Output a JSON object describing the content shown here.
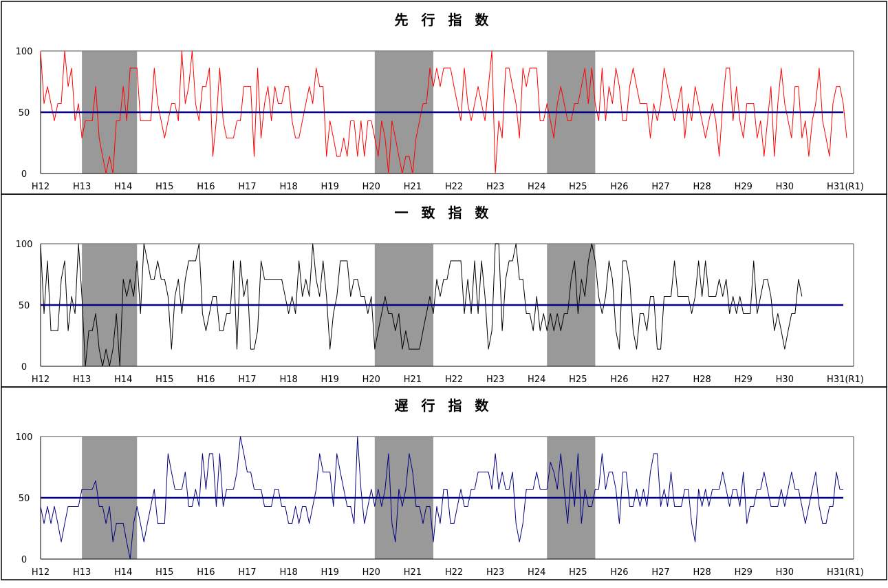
{
  "chart_data": [
    {
      "type": "line",
      "title": "先 行 指 数",
      "ylim": [
        0,
        100
      ],
      "yticks": [
        0,
        50,
        100
      ],
      "x_tick_labels": [
        "H12",
        "H13",
        "H14",
        "H15",
        "H16",
        "H17",
        "H18",
        "H19",
        "H20",
        "H21",
        "H22",
        "H23",
        "H24",
        "H25",
        "H26",
        "H27",
        "H28",
        "H29",
        "H30",
        "H31(R1)"
      ],
      "x_unit": "month index (0 = first month of H12)",
      "x_range": [
        0,
        236
      ],
      "recession_periods_months": [
        [
          12,
          28
        ],
        [
          97,
          114
        ],
        [
          147,
          161
        ]
      ],
      "reference_line": 50,
      "series_color": "#ff0000",
      "reference_color": "#000080",
      "values": [
        100,
        57,
        71,
        57,
        43,
        57,
        57,
        100,
        71,
        86,
        43,
        57,
        29,
        43,
        43,
        43,
        71,
        29,
        14,
        0,
        14,
        0,
        43,
        43,
        71,
        43,
        86,
        86,
        86,
        43,
        43,
        43,
        43,
        86,
        57,
        43,
        29,
        43,
        57,
        57,
        43,
        100,
        57,
        71,
        100,
        57,
        43,
        71,
        71,
        86,
        14,
        43,
        86,
        43,
        29,
        29,
        29,
        43,
        43,
        71,
        71,
        71,
        14,
        86,
        29,
        57,
        71,
        43,
        71,
        57,
        57,
        71,
        71,
        43,
        29,
        29,
        43,
        57,
        71,
        57,
        86,
        71,
        71,
        14,
        43,
        29,
        14,
        14,
        29,
        14,
        43,
        43,
        14,
        43,
        14,
        43,
        43,
        29,
        14,
        43,
        29,
        0,
        43,
        29,
        14,
        0,
        14,
        14,
        0,
        29,
        43,
        57,
        57,
        86,
        71,
        86,
        71,
        86,
        86,
        86,
        71,
        57,
        43,
        86,
        57,
        43,
        57,
        71,
        57,
        43,
        71,
        100,
        0,
        43,
        29,
        86,
        86,
        71,
        57,
        29,
        86,
        71,
        86,
        86,
        86,
        43,
        43,
        57,
        43,
        29,
        57,
        71,
        57,
        43,
        43,
        57,
        57,
        71,
        86,
        57,
        86,
        57,
        43,
        86,
        43,
        71,
        57,
        86,
        71,
        43,
        43,
        71,
        86,
        71,
        57,
        57,
        57,
        29,
        57,
        43,
        57,
        86,
        71,
        57,
        43,
        57,
        71,
        29,
        57,
        43,
        71,
        57,
        43,
        29,
        43,
        57,
        43,
        14,
        57,
        86,
        86,
        43,
        71,
        43,
        29,
        57,
        57,
        57,
        29,
        43,
        14,
        43,
        71,
        14,
        57,
        86,
        57,
        43,
        29,
        71,
        71,
        29,
        43,
        14,
        43,
        57,
        86,
        43,
        29,
        14,
        57,
        71,
        71,
        57,
        29
      ]
    },
    {
      "type": "line",
      "title": "一 致 指 数",
      "ylim": [
        0,
        100
      ],
      "yticks": [
        0,
        50,
        100
      ],
      "x_tick_labels": [
        "H12",
        "H13",
        "H14",
        "H15",
        "H16",
        "H17",
        "H18",
        "H19",
        "H20",
        "H21",
        "H22",
        "H23",
        "H24",
        "H25",
        "H26",
        "H27",
        "H28",
        "H29",
        "H30",
        "H31(R1)"
      ],
      "x_unit": "month index (0 = first month of H12)",
      "x_range": [
        0,
        236
      ],
      "recession_periods_months": [
        [
          12,
          28
        ],
        [
          97,
          114
        ],
        [
          147,
          161
        ]
      ],
      "reference_line": 50,
      "series_color": "#000000",
      "reference_color": "#000080",
      "values": [
        100,
        43,
        86,
        29,
        29,
        29,
        71,
        86,
        29,
        57,
        43,
        100,
        57,
        0,
        29,
        29,
        43,
        14,
        0,
        14,
        0,
        14,
        43,
        0,
        71,
        57,
        71,
        57,
        86,
        43,
        100,
        86,
        71,
        71,
        86,
        71,
        71,
        57,
        14,
        57,
        71,
        43,
        71,
        86,
        86,
        86,
        100,
        43,
        29,
        43,
        57,
        57,
        29,
        29,
        43,
        43,
        86,
        14,
        86,
        57,
        71,
        14,
        14,
        29,
        86,
        71,
        71,
        71,
        71,
        71,
        71,
        57,
        43,
        57,
        43,
        86,
        57,
        71,
        57,
        100,
        71,
        57,
        86,
        57,
        14,
        43,
        57,
        86,
        86,
        86,
        57,
        71,
        71,
        57,
        57,
        43,
        57,
        14,
        29,
        43,
        57,
        43,
        43,
        29,
        43,
        14,
        29,
        14,
        14,
        14,
        14,
        29,
        43,
        57,
        43,
        71,
        57,
        71,
        71,
        86,
        86,
        86,
        86,
        43,
        71,
        43,
        86,
        43,
        86,
        57,
        14,
        29,
        100,
        100,
        29,
        71,
        86,
        86,
        100,
        71,
        71,
        43,
        43,
        29,
        57,
        29,
        43,
        29,
        43,
        29,
        43,
        29,
        43,
        43,
        71,
        86,
        43,
        71,
        57,
        86,
        100,
        86,
        57,
        43,
        57,
        86,
        71,
        29,
        14,
        86,
        86,
        71,
        29,
        14,
        43,
        43,
        29,
        57,
        57,
        14,
        14,
        57,
        57,
        57,
        86,
        57,
        57,
        57,
        57,
        43,
        57,
        86,
        57,
        86,
        57,
        57,
        57,
        71,
        57,
        71,
        43,
        57,
        43,
        57,
        43,
        43,
        43,
        86,
        43,
        57,
        71,
        71,
        57,
        29,
        43,
        29,
        14,
        29,
        43,
        43,
        71,
        57
      ]
    },
    {
      "type": "line",
      "title": "遅 行 指 数",
      "ylim": [
        0,
        100
      ],
      "yticks": [
        0,
        50,
        100
      ],
      "x_tick_labels": [
        "H12",
        "H13",
        "H14",
        "H15",
        "H16",
        "H17",
        "H18",
        "H19",
        "H20",
        "H21",
        "H22",
        "H23",
        "H24",
        "H25",
        "H26",
        "H27",
        "H28",
        "H29",
        "H30",
        "H31(R1)"
      ],
      "x_unit": "month index (0 = first month of H12)",
      "x_range": [
        0,
        236
      ],
      "recession_periods_months": [
        [
          12,
          28
        ],
        [
          97,
          114
        ],
        [
          147,
          161
        ]
      ],
      "reference_line": 50,
      "series_color": "#000080",
      "reference_color": "#000080",
      "values": [
        43,
        29,
        43,
        29,
        43,
        29,
        14,
        29,
        43,
        43,
        43,
        43,
        57,
        57,
        57,
        57,
        64,
        43,
        43,
        29,
        43,
        14,
        29,
        29,
        29,
        14,
        0,
        29,
        43,
        29,
        14,
        29,
        43,
        57,
        29,
        29,
        29,
        86,
        71,
        57,
        57,
        57,
        71,
        43,
        43,
        57,
        43,
        86,
        57,
        86,
        86,
        43,
        86,
        43,
        57,
        57,
        57,
        71,
        100,
        86,
        71,
        71,
        57,
        57,
        57,
        43,
        43,
        43,
        57,
        57,
        43,
        43,
        29,
        29,
        43,
        29,
        43,
        43,
        29,
        43,
        57,
        86,
        71,
        71,
        71,
        43,
        86,
        71,
        57,
        43,
        43,
        29,
        100,
        57,
        29,
        43,
        57,
        43,
        57,
        43,
        57,
        86,
        29,
        14,
        57,
        43,
        57,
        86,
        71,
        43,
        43,
        29,
        43,
        43,
        14,
        43,
        29,
        57,
        57,
        29,
        29,
        43,
        57,
        43,
        43,
        57,
        57,
        71,
        71,
        71,
        71,
        57,
        86,
        57,
        71,
        57,
        57,
        71,
        29,
        14,
        29,
        57,
        57,
        57,
        71,
        57,
        57,
        57,
        79,
        71,
        57,
        86,
        57,
        29,
        71,
        43,
        86,
        29,
        57,
        43,
        43,
        57,
        57,
        86,
        57,
        71,
        71,
        57,
        29,
        71,
        71,
        43,
        43,
        57,
        43,
        57,
        43,
        71,
        86,
        86,
        43,
        57,
        43,
        71,
        43,
        43,
        43,
        57,
        57,
        29,
        14,
        57,
        43,
        57,
        43,
        57,
        57,
        57,
        71,
        57,
        43,
        57,
        57,
        43,
        71,
        29,
        43,
        43,
        57,
        57,
        71,
        57,
        43,
        43,
        43,
        57,
        43,
        57,
        71,
        57,
        57,
        43,
        29,
        43,
        57,
        71,
        43,
        29,
        29,
        43,
        43,
        71,
        57,
        57
      ]
    }
  ]
}
